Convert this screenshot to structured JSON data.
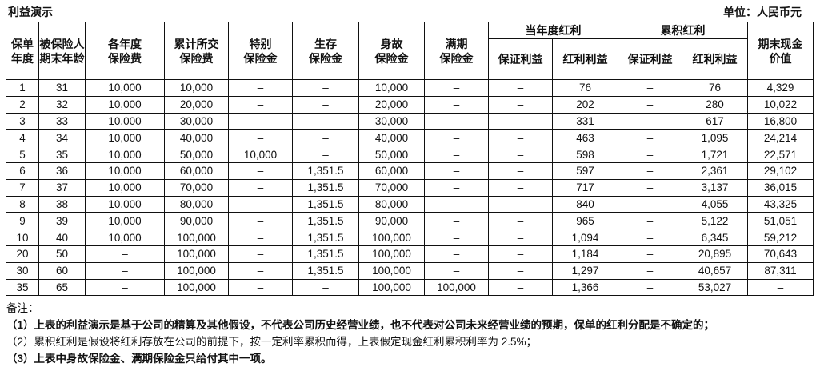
{
  "title": "利益演示",
  "unit": "单位：人民币元",
  "headers": {
    "year": [
      "保单",
      "年度"
    ],
    "age": [
      "被保险人",
      "期末年龄"
    ],
    "premium": [
      "各年度",
      "保险费"
    ],
    "cum_premium": [
      "累计所交",
      "保险费"
    ],
    "special": [
      "特别",
      "保险金"
    ],
    "survival": [
      "生存",
      "保险金"
    ],
    "death": [
      "身故",
      "保险金"
    ],
    "maturity": [
      "满期",
      "保险金"
    ],
    "current_group": "当年度红利",
    "cum_group": "累积红利",
    "guaranteed": "保证利益",
    "dividend": "红利利益",
    "cash_value": [
      "期末现金",
      "价值"
    ]
  },
  "rows": [
    [
      "1",
      "31",
      "10,000",
      "10,000",
      "–",
      "–",
      "10,000",
      "–",
      "–",
      "76",
      "–",
      "76",
      "4,329"
    ],
    [
      "2",
      "32",
      "10,000",
      "20,000",
      "–",
      "–",
      "20,000",
      "–",
      "–",
      "202",
      "–",
      "280",
      "10,022"
    ],
    [
      "3",
      "33",
      "10,000",
      "30,000",
      "–",
      "–",
      "30,000",
      "–",
      "–",
      "331",
      "–",
      "617",
      "16,800"
    ],
    [
      "4",
      "34",
      "10,000",
      "40,000",
      "–",
      "–",
      "40,000",
      "–",
      "–",
      "463",
      "–",
      "1,095",
      "24,214"
    ],
    [
      "5",
      "35",
      "10,000",
      "50,000",
      "10,000",
      "–",
      "50,000",
      "–",
      "–",
      "598",
      "–",
      "1,721",
      "22,571"
    ],
    [
      "6",
      "36",
      "10,000",
      "60,000",
      "–",
      "1,351.5",
      "60,000",
      "–",
      "–",
      "597",
      "–",
      "2,361",
      "29,102"
    ],
    [
      "7",
      "37",
      "10,000",
      "70,000",
      "–",
      "1,351.5",
      "70,000",
      "–",
      "–",
      "717",
      "–",
      "3,137",
      "36,015"
    ],
    [
      "8",
      "38",
      "10,000",
      "80,000",
      "–",
      "1,351.5",
      "80,000",
      "–",
      "–",
      "840",
      "–",
      "4,055",
      "43,325"
    ],
    [
      "9",
      "39",
      "10,000",
      "90,000",
      "–",
      "1,351.5",
      "90,000",
      "–",
      "–",
      "965",
      "–",
      "5,122",
      "51,051"
    ],
    [
      "10",
      "40",
      "10,000",
      "100,000",
      "–",
      "1,351.5",
      "100,000",
      "–",
      "–",
      "1,094",
      "–",
      "6,345",
      "59,212"
    ],
    [
      "20",
      "50",
      "–",
      "100,000",
      "–",
      "1,351.5",
      "100,000",
      "–",
      "–",
      "1,184",
      "–",
      "20,895",
      "70,643"
    ],
    [
      "30",
      "60",
      "–",
      "100,000",
      "–",
      "1,351.5",
      "100,000",
      "–",
      "–",
      "1,297",
      "–",
      "40,657",
      "87,311"
    ],
    [
      "35",
      "65",
      "–",
      "100,000",
      "–",
      "–",
      "100,000",
      "100,000",
      "–",
      "1,366",
      "–",
      "53,027",
      "–"
    ]
  ],
  "notes": {
    "label": "备注：",
    "n1": "（1）上表的利益演示是基于公司的精算及其他假设，不代表公司历史经营业绩，也不代表对公司未来经营业绩的预期，保单的红利分配是不确定的；",
    "n2": "（2）累积红利是假设将红利存放在公司的前提下，按一定利率累积而得，上表假定现金红利累积利率为 2.5%；",
    "n3": "（3）上表中身故保险金、满期保险金只给付其中一项。"
  }
}
